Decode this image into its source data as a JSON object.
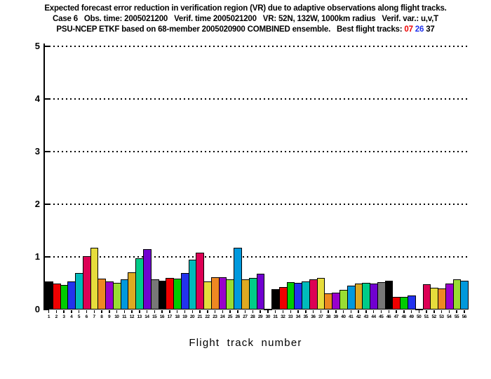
{
  "page": {
    "background": "#FFFFFF",
    "axis_color": "#000000"
  },
  "chart_data": {
    "type": "bar",
    "title": "Expected forecast error reduction in verification region (VR) due to adaptive observations along flight tracks.",
    "subtitle": "Case 6   Obs. time: 2005021200   Verif. time 2005021200   VR: 52N, 132W, 1000km radius   Verif. var.: u,v,T",
    "subtitle2_prefix": "PSU-NCEP ETKF based on 68-member 2005020900 COMBINED ensemble.   Best flight tracks: ",
    "best_tracks": [
      {
        "label": "07",
        "color": "#EE0000"
      },
      {
        "label": "26",
        "color": "#2233EE"
      },
      {
        "label": "37",
        "color": "#000000"
      }
    ],
    "xlabel": "Flight track number",
    "ylabel": "",
    "ylim": [
      0,
      5
    ],
    "yticks": [
      0,
      1,
      2,
      3,
      4,
      5
    ],
    "grid": "horizontal-dotted",
    "legend": "none",
    "categories": [
      "1",
      "2",
      "3",
      "4",
      "5",
      "6",
      "7",
      "8",
      "9",
      "10",
      "11",
      "12",
      "13",
      "14",
      "15",
      "16",
      "17",
      "18",
      "19",
      "20",
      "21",
      "22",
      "23",
      "24",
      "25",
      "26",
      "27",
      "28",
      "29",
      "30",
      "31",
      "32",
      "33",
      "34",
      "35",
      "36",
      "37",
      "38",
      "39",
      "40",
      "41",
      "42",
      "43",
      "44",
      "45",
      "46",
      "47",
      "48",
      "49",
      "50",
      "51",
      "52",
      "53",
      "54",
      "55",
      "56"
    ],
    "values": [
      0.54,
      0.5,
      0.47,
      0.54,
      0.7,
      1.01,
      1.18,
      0.59,
      0.53,
      0.51,
      0.57,
      0.71,
      0.98,
      1.15,
      0.58,
      0.55,
      0.6,
      0.59,
      0.69,
      0.95,
      1.08,
      0.54,
      0.61,
      0.61,
      0.57,
      1.17,
      0.57,
      0.6,
      0.68,
      0.02,
      0.39,
      0.43,
      0.52,
      0.51,
      0.53,
      0.57,
      0.6,
      0.31,
      0.32,
      0.38,
      0.45,
      0.49,
      0.51,
      0.49,
      0.52,
      0.55,
      0.24,
      0.24,
      0.27,
      0.02,
      0.48,
      0.42,
      0.4,
      0.49,
      0.57,
      0.55
    ],
    "color_cycle": [
      "#000000",
      "#EE0000",
      "#00CC00",
      "#2233EE",
      "#00BBBB",
      "#DD0055",
      "#E6DC3C",
      "#EE8822",
      "#9900CC",
      "#99DD33",
      "#0099DD",
      "#DDAA22",
      "#00CC88",
      "#7000D0",
      "#777777"
    ]
  }
}
